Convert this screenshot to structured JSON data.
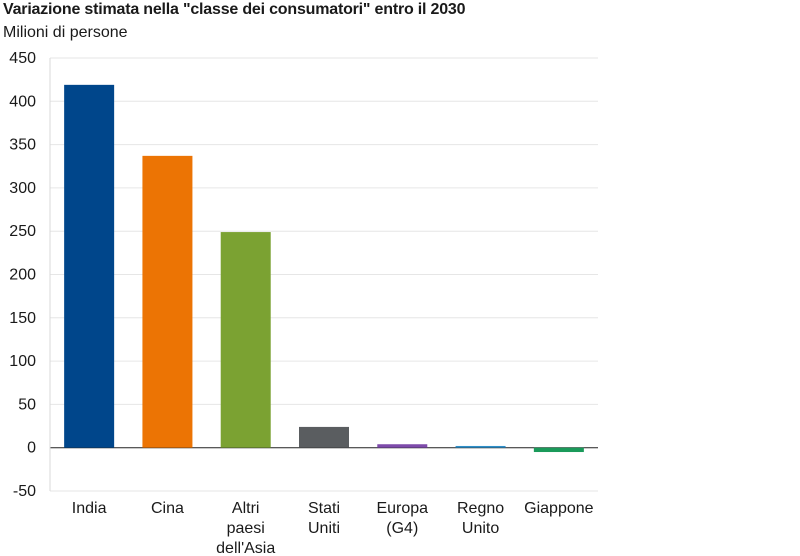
{
  "chart_data": {
    "type": "bar",
    "title": "Variazione stimata nella \"classe dei consumatori\" entro il 2030",
    "subtitle": "Milioni di persone",
    "xlabel": "",
    "ylabel": "",
    "ylim": [
      -50,
      450
    ],
    "yticks": [
      450,
      400,
      350,
      300,
      250,
      200,
      150,
      100,
      50,
      0,
      -50
    ],
    "grid": true,
    "categories": [
      [
        "India"
      ],
      [
        "Cina"
      ],
      [
        "Altri",
        "paesi",
        "dell'Asia"
      ],
      [
        "Stati",
        "Uniti"
      ],
      [
        "Europa",
        "(G4)"
      ],
      [
        "Regno",
        "Unito"
      ],
      [
        "Giappone"
      ]
    ],
    "values": [
      419,
      337,
      249,
      24,
      4,
      2,
      -5
    ],
    "colors": [
      "#00468b",
      "#ec7404",
      "#7ba232",
      "#5a5d60",
      "#7e4bab",
      "#2f8fc9",
      "#1a9a5a"
    ]
  }
}
